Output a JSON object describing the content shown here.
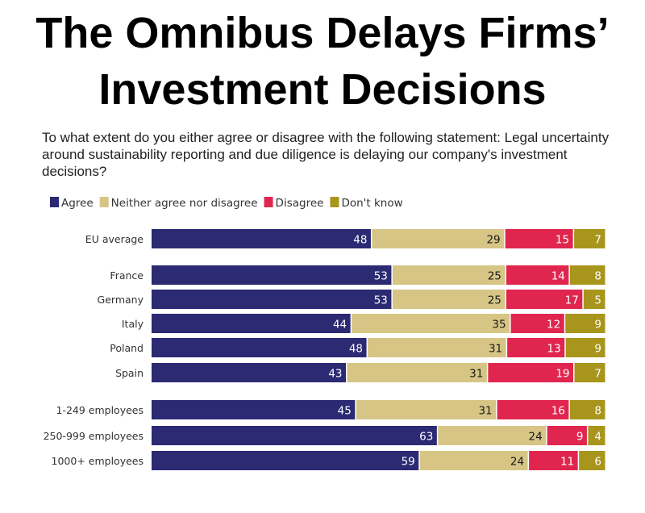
{
  "title_line1": "The Omnibus Delays Firms’",
  "title_line2": "Investment Decisions",
  "chart_data": {
    "type": "bar",
    "orientation": "horizontal-stacked-100",
    "title": "To what extent do you either agree or disagree with the following statement: Legal uncertainty around sustainability reporting and due diligence is delaying our company's investment decisions?",
    "legend_position": "top-left",
    "categories": [
      "EU average",
      "France",
      "Germany",
      "Italy",
      "Poland",
      "Spain",
      "1-249 employees",
      "250-999 employees",
      "1000+ employees"
    ],
    "groups": [
      [
        0
      ],
      [
        1,
        2,
        3,
        4,
        5
      ],
      [
        6,
        7,
        8
      ]
    ],
    "series": [
      {
        "name": "Agree",
        "color": "#2b2a73",
        "label_color": "#ffffff",
        "values": [
          48,
          53,
          53,
          44,
          48,
          43,
          45,
          63,
          59
        ]
      },
      {
        "name": "Neither agree nor disagree",
        "color": "#d6c585",
        "label_color": "#1a1a1a",
        "values": [
          29,
          25,
          25,
          35,
          31,
          31,
          31,
          24,
          24
        ]
      },
      {
        "name": "Disagree",
        "color": "#e0264f",
        "label_color": "#ffffff",
        "values": [
          15,
          14,
          17,
          12,
          13,
          19,
          16,
          9,
          11
        ]
      },
      {
        "name": "Don't know",
        "color": "#a8951c",
        "label_color": "#ffffff",
        "values": [
          7,
          8,
          5,
          9,
          9,
          7,
          8,
          4,
          6
        ]
      }
    ]
  }
}
